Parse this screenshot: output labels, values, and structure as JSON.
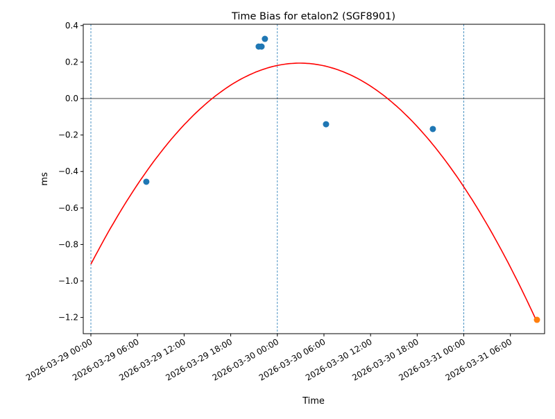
{
  "chart_data": {
    "type": "scatter",
    "title": "Time Bias for etalon2 (SGF8901)",
    "xlabel": "Time",
    "ylabel": "ms",
    "xlim": [
      "2026-03-28T23:01",
      "2026-03-31T10:24"
    ],
    "ylim": [
      -1.289,
      0.407
    ],
    "grid": false,
    "x_ticks": [
      "2026-03-29T00:00",
      "2026-03-29T06:00",
      "2026-03-29T12:00",
      "2026-03-29T18:00",
      "2026-03-30T00:00",
      "2026-03-30T06:00",
      "2026-03-30T12:00",
      "2026-03-30T18:00",
      "2026-03-31T00:00",
      "2026-03-31T06:00"
    ],
    "x_tick_labels": [
      "2026-03-29 00:00",
      "2026-03-29 06:00",
      "2026-03-29 12:00",
      "2026-03-29 18:00",
      "2026-03-30 00:00",
      "2026-03-30 06:00",
      "2026-03-30 12:00",
      "2026-03-30 18:00",
      "2026-03-31 00:00",
      "2026-03-31 06:00"
    ],
    "y_ticks": [
      0.4,
      0.2,
      0.0,
      -0.2,
      -0.4,
      -0.6,
      -0.8,
      -1.0,
      -1.2
    ],
    "y_tick_labels": [
      "0.4",
      "0.2",
      "0.0",
      "−0.2",
      "−0.4",
      "−0.6",
      "−0.8",
      "−1.0",
      "−1.2"
    ],
    "day_lines": [
      "2026-03-29T00:00",
      "2026-03-30T00:00",
      "2026-03-31T00:00"
    ],
    "zero_line": 0.0,
    "series": [
      {
        "kind": "scatter",
        "color": "#1f77b4",
        "points": [
          {
            "x": "2026-03-29T07:08",
            "y": -0.456
          },
          {
            "x": "2026-03-29T21:36",
            "y": 0.285
          },
          {
            "x": "2026-03-29T21:58",
            "y": 0.285
          },
          {
            "x": "2026-03-29T22:24",
            "y": 0.327
          },
          {
            "x": "2026-03-30T06:16",
            "y": -0.141
          },
          {
            "x": "2026-03-30T20:01",
            "y": -0.167
          }
        ]
      },
      {
        "kind": "scatter",
        "color": "#ff7f0e",
        "points": [
          {
            "x": "2026-03-31T09:25",
            "y": -1.213
          }
        ]
      },
      {
        "kind": "fit-quadratic",
        "color": "#ff0000",
        "x_range": [
          "2026-03-29T00:00",
          "2026-03-31T09:25"
        ],
        "vertex": {
          "x": "2026-03-30T02:54",
          "y": 0.194
        },
        "curvature_per_hour2": -0.001523
      }
    ]
  }
}
